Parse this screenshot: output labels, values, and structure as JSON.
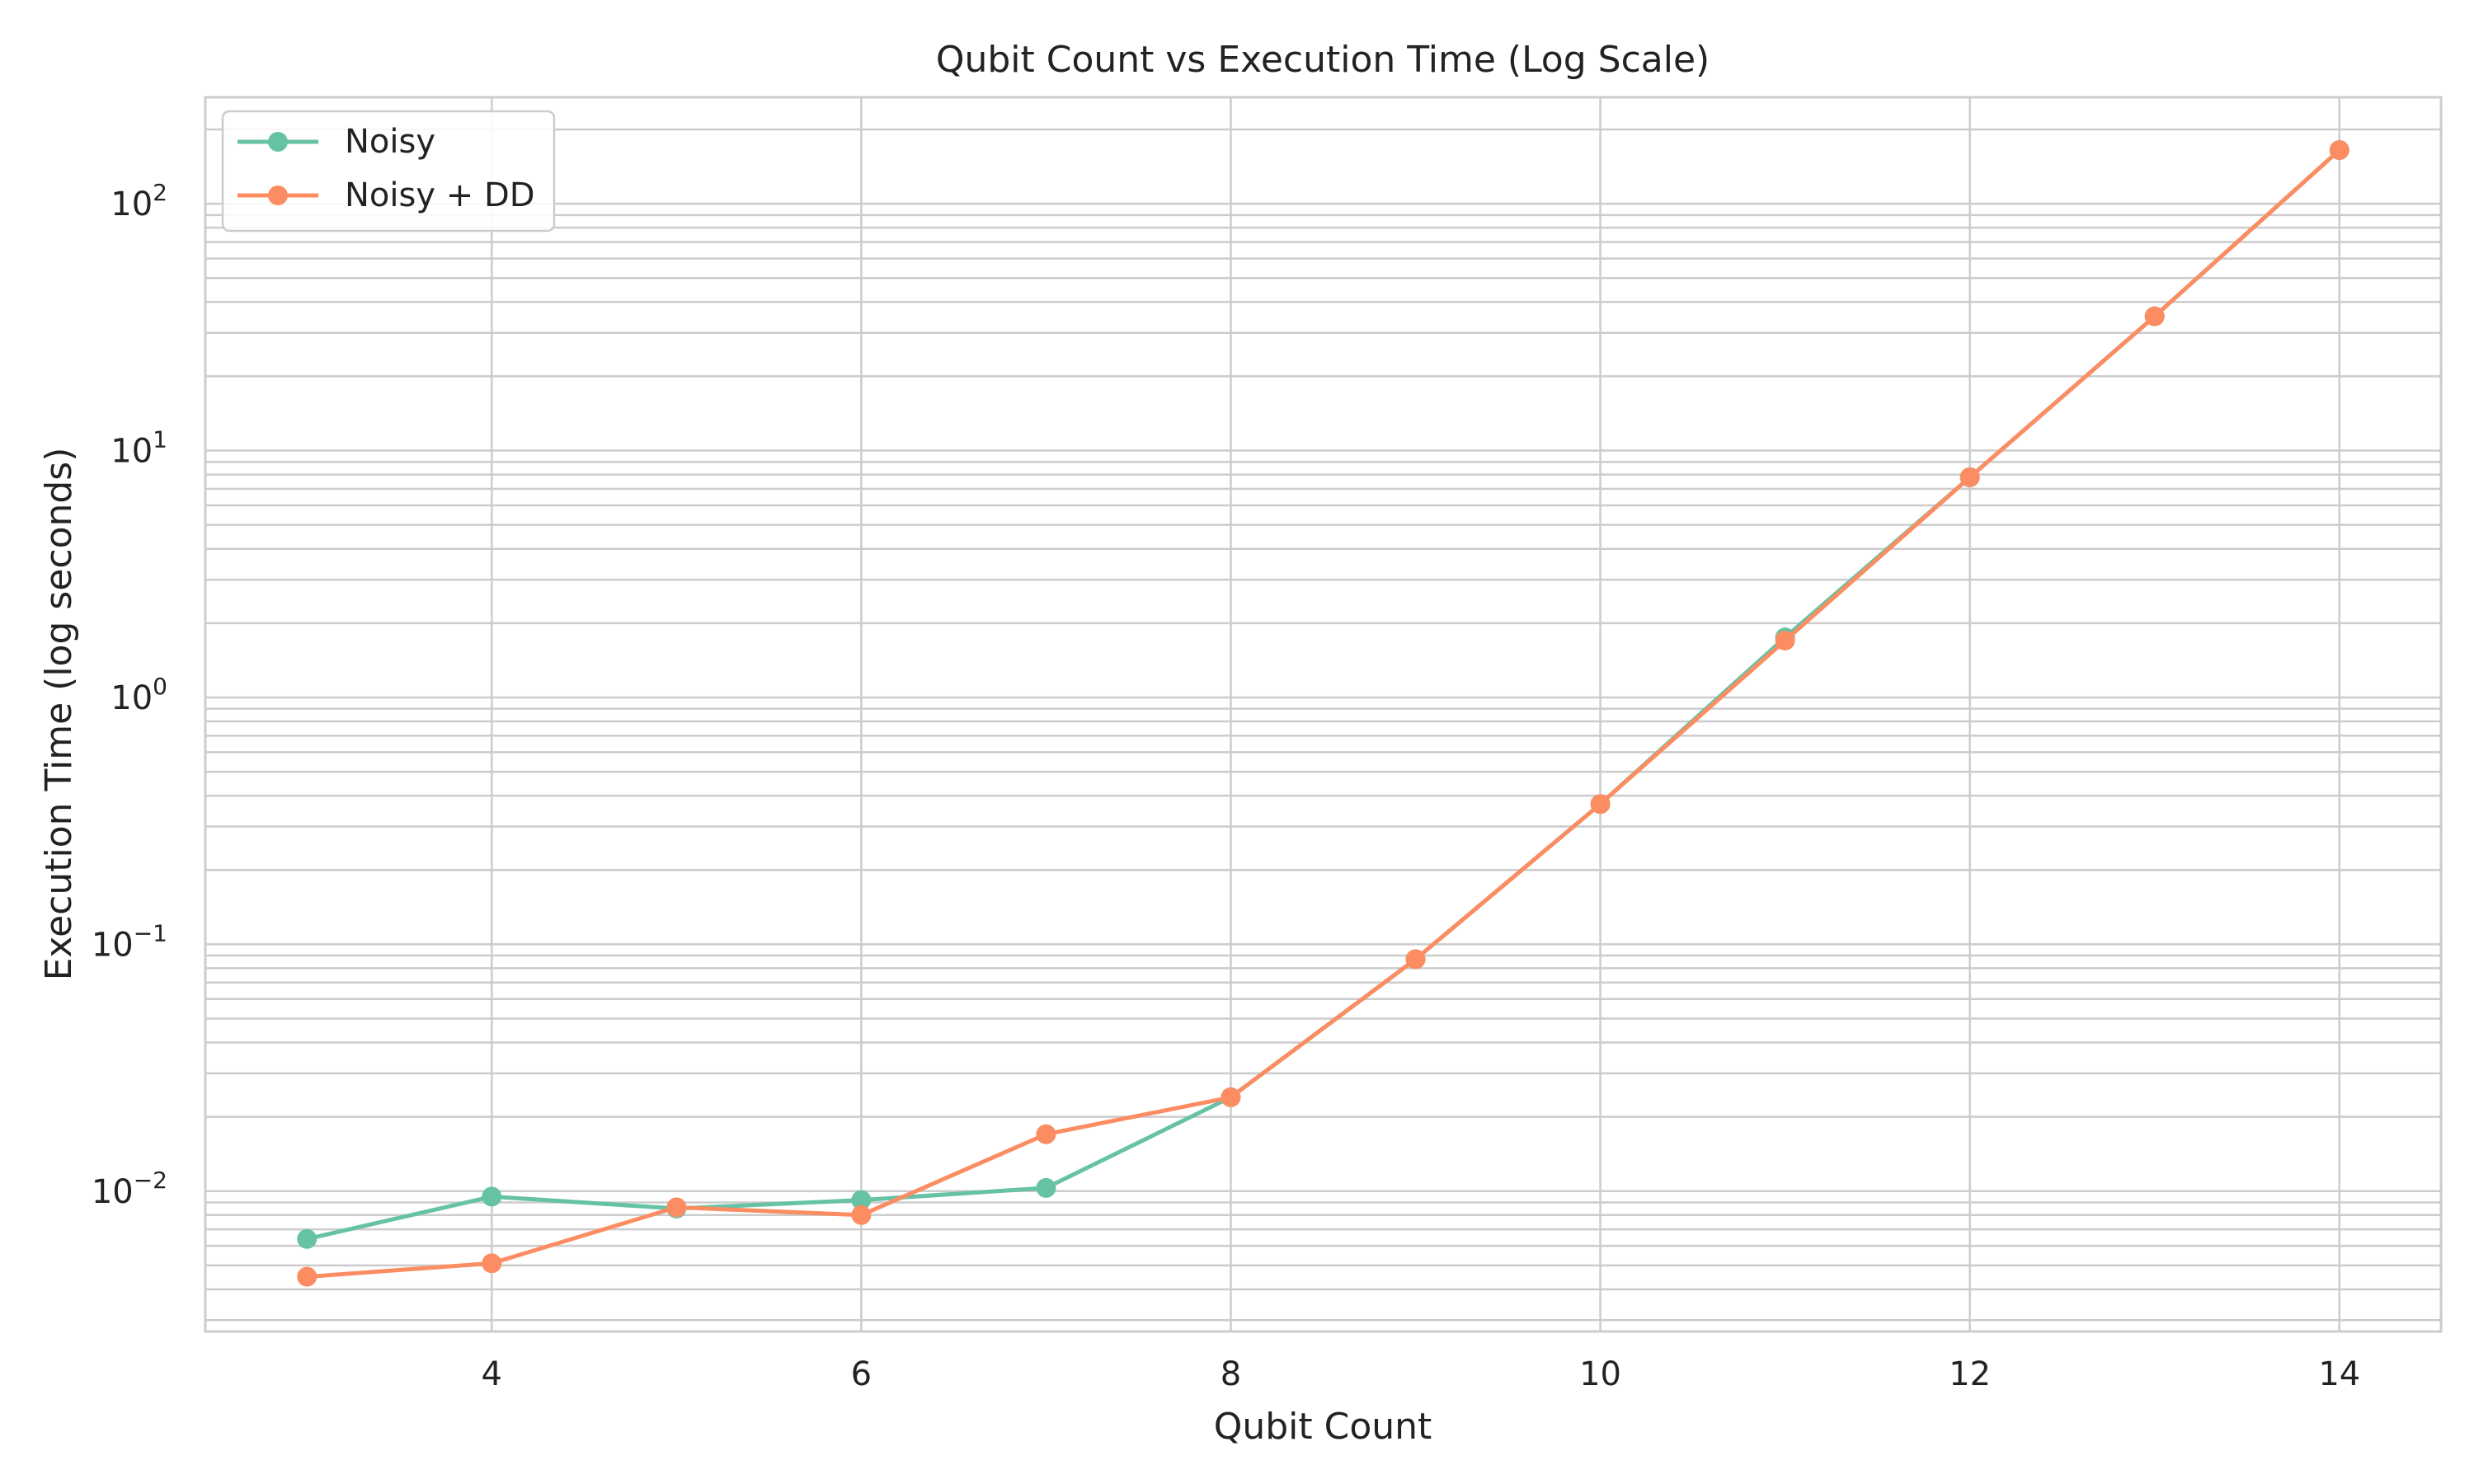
{
  "chart_data": {
    "type": "line",
    "title": "Qubit Count vs Execution Time (Log Scale)",
    "xlabel": "Qubit Count",
    "ylabel": "Execution Time (log seconds)",
    "y_scale": "log",
    "grid": true,
    "legend_position": "top-left",
    "xlim": [
      2.45,
      14.55
    ],
    "ylim": [
      0.0027,
      270
    ],
    "x_ticks": [
      4,
      6,
      8,
      10,
      12,
      14
    ],
    "y_ticks": [
      {
        "value": 0.01,
        "base": "10",
        "exp": "−2"
      },
      {
        "value": 0.1,
        "base": "10",
        "exp": "−1"
      },
      {
        "value": 1,
        "base": "10",
        "exp": "0"
      },
      {
        "value": 10,
        "base": "10",
        "exp": "1"
      },
      {
        "value": 100,
        "base": "10",
        "exp": "2"
      }
    ],
    "x": [
      3,
      4,
      5,
      6,
      7,
      8,
      9,
      10,
      11,
      12,
      13,
      14
    ],
    "series": [
      {
        "name": "Noisy",
        "color": "#66c2a5",
        "values": [
          0.0064,
          0.0095,
          0.0085,
          0.0092,
          0.0103,
          0.024,
          0.087,
          0.37,
          1.75,
          7.8,
          35,
          165
        ]
      },
      {
        "name": "Noisy + DD",
        "color": "#fc8d62",
        "values": [
          0.0045,
          0.0051,
          0.0086,
          0.008,
          0.017,
          0.024,
          0.087,
          0.37,
          1.7,
          7.8,
          35,
          165
        ]
      }
    ]
  }
}
